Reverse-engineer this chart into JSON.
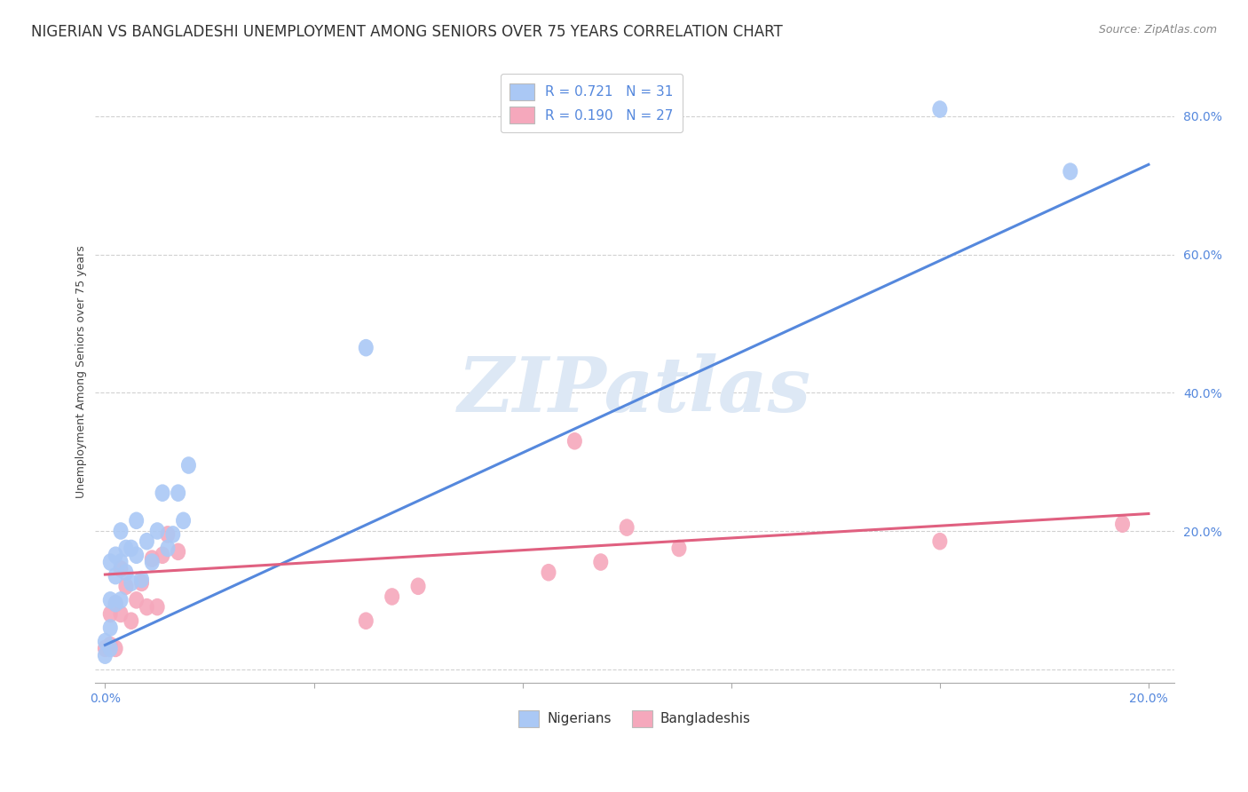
{
  "title": "NIGERIAN VS BANGLADESHI UNEMPLOYMENT AMONG SENIORS OVER 75 YEARS CORRELATION CHART",
  "source": "Source: ZipAtlas.com",
  "ylabel": "Unemployment Among Seniors over 75 years",
  "xlim": [
    -0.002,
    0.205
  ],
  "ylim": [
    -0.02,
    0.88
  ],
  "yticks": [
    0.0,
    0.2,
    0.4,
    0.6,
    0.8
  ],
  "ytick_labels": [
    "",
    "20.0%",
    "40.0%",
    "60.0%",
    "80.0%"
  ],
  "xticks": [
    0.0,
    0.04,
    0.08,
    0.12,
    0.16,
    0.2
  ],
  "xtick_labels": [
    "0.0%",
    "",
    "",
    "",
    "",
    "20.0%"
  ],
  "nigerian_R": "0.721",
  "nigerian_N": "31",
  "bangladeshi_R": "0.190",
  "bangladeshi_N": "27",
  "nigerian_color": "#aac8f5",
  "bangladeshi_color": "#f5a8bc",
  "nigerian_line_color": "#5588dd",
  "bangladeshi_line_color": "#e06080",
  "watermark": "ZIPatlas",
  "watermark_color": "#dde8f5",
  "nigerian_x": [
    0.0,
    0.0,
    0.001,
    0.001,
    0.001,
    0.001,
    0.002,
    0.002,
    0.002,
    0.003,
    0.003,
    0.003,
    0.004,
    0.004,
    0.005,
    0.005,
    0.006,
    0.006,
    0.007,
    0.008,
    0.009,
    0.01,
    0.011,
    0.012,
    0.013,
    0.014,
    0.015,
    0.016,
    0.05,
    0.16,
    0.185
  ],
  "nigerian_y": [
    0.02,
    0.04,
    0.03,
    0.06,
    0.1,
    0.155,
    0.095,
    0.135,
    0.165,
    0.1,
    0.155,
    0.2,
    0.14,
    0.175,
    0.125,
    0.175,
    0.165,
    0.215,
    0.13,
    0.185,
    0.155,
    0.2,
    0.255,
    0.175,
    0.195,
    0.255,
    0.215,
    0.295,
    0.465,
    0.81,
    0.72
  ],
  "bangladeshi_x": [
    0.0,
    0.001,
    0.001,
    0.002,
    0.002,
    0.003,
    0.003,
    0.004,
    0.005,
    0.006,
    0.007,
    0.008,
    0.009,
    0.01,
    0.011,
    0.012,
    0.014,
    0.05,
    0.055,
    0.06,
    0.085,
    0.09,
    0.095,
    0.1,
    0.11,
    0.16,
    0.195
  ],
  "bangladeshi_y": [
    0.03,
    0.035,
    0.08,
    0.03,
    0.095,
    0.08,
    0.145,
    0.12,
    0.07,
    0.1,
    0.125,
    0.09,
    0.16,
    0.09,
    0.165,
    0.195,
    0.17,
    0.07,
    0.105,
    0.12,
    0.14,
    0.33,
    0.155,
    0.205,
    0.175,
    0.185,
    0.21
  ],
  "nig_line_x0": 0.0,
  "nig_line_y0": 0.035,
  "nig_line_x1": 0.2,
  "nig_line_y1": 0.73,
  "ban_line_x0": 0.0,
  "ban_line_y0": 0.137,
  "ban_line_x1": 0.2,
  "ban_line_y1": 0.225,
  "title_fontsize": 12,
  "axis_label_fontsize": 9,
  "tick_fontsize": 10,
  "legend_fontsize": 11
}
